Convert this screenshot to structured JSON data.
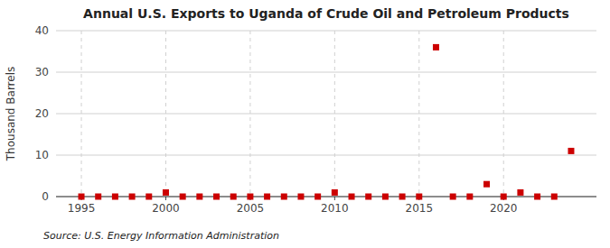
{
  "chart_data": {
    "type": "scatter",
    "title": "Annual U.S. Exports to Uganda of Crude Oil and Petroleum Products",
    "ylabel": "Thousand Barrels",
    "source": "Source: U.S. Energy Information Administration",
    "x": [
      1995,
      1996,
      1997,
      1998,
      1999,
      2000,
      2001,
      2002,
      2003,
      2004,
      2005,
      2006,
      2007,
      2008,
      2009,
      2010,
      2011,
      2012,
      2013,
      2014,
      2015,
      2016,
      2017,
      2018,
      2019,
      2020,
      2021,
      2022,
      2023,
      2024
    ],
    "values": [
      0,
      0,
      0,
      0,
      0,
      1,
      0,
      0,
      0,
      0,
      0,
      0,
      0,
      0,
      0,
      1,
      0,
      0,
      0,
      0,
      0,
      36,
      0,
      0,
      3,
      0,
      1,
      0,
      0,
      11
    ],
    "color": "#cc0000",
    "marker": "square",
    "xlim": [
      1993.5,
      2025.5
    ],
    "ylim": [
      0,
      40
    ],
    "xticks": [
      1995,
      2000,
      2005,
      2010,
      2015,
      2020
    ],
    "yticks": [
      0,
      10,
      20,
      30,
      40
    ],
    "grid": true
  }
}
